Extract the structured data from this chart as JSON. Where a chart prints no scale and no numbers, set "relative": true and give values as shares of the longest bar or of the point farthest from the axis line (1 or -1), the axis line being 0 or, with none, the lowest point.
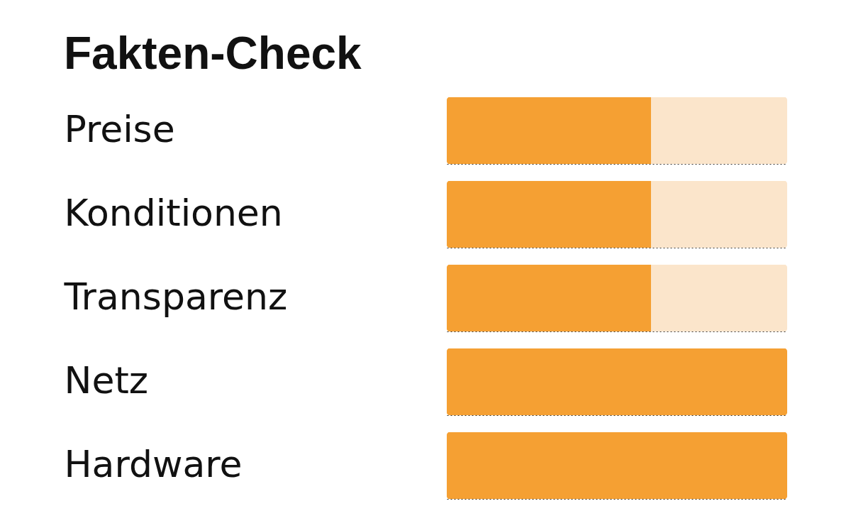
{
  "chart_data": {
    "type": "bar",
    "title": "Fakten-Check",
    "orientation": "horizontal",
    "stacked": true,
    "relative": true,
    "grid": "y",
    "categories": [
      "Preise",
      "Konditionen",
      "Transparenz",
      "Netz",
      "Hardware"
    ],
    "series": [
      {
        "color": "#f5a033",
        "values": [
          0.6,
          0.6,
          0.6,
          1,
          1
        ]
      },
      {
        "color": "#fbe5cb",
        "values": [
          0.4,
          0.4,
          0.4,
          0,
          0
        ]
      }
    ]
  }
}
